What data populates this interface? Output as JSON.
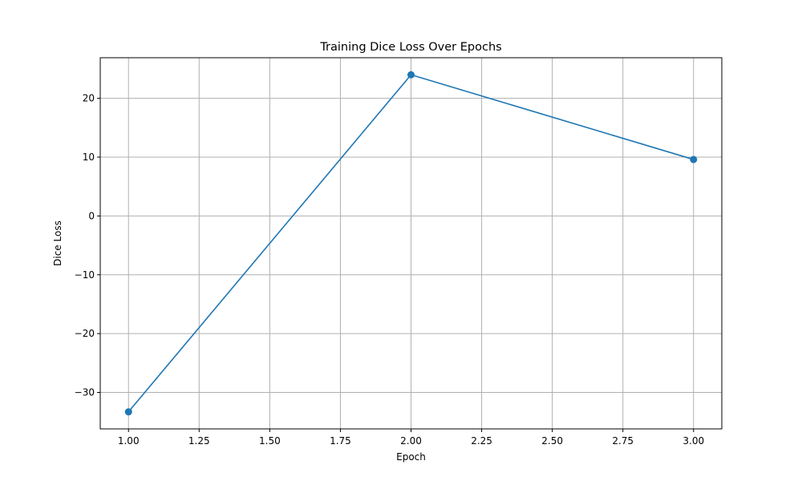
{
  "chart_data": {
    "type": "line",
    "title": "Training Dice Loss Over Epochs",
    "xlabel": "Epoch",
    "ylabel": "Dice Loss",
    "x": [
      1.0,
      2.0,
      3.0
    ],
    "series": [
      {
        "values": [
          -33.3,
          24.0,
          9.6
        ],
        "color": "#1f77b4",
        "marker": "circle"
      }
    ],
    "xlim": [
      0.9,
      3.1
    ],
    "ylim": [
      -36.2,
      26.9
    ],
    "xticks": [
      1.0,
      1.25,
      1.5,
      1.75,
      2.0,
      2.25,
      2.5,
      2.75,
      3.0
    ],
    "xtick_labels": [
      "1.00",
      "1.25",
      "1.50",
      "1.75",
      "2.00",
      "2.25",
      "2.50",
      "2.75",
      "3.00"
    ],
    "yticks": [
      -30,
      -20,
      -10,
      0,
      10,
      20
    ],
    "ytick_labels": [
      "−30",
      "−20",
      "−10",
      "0",
      "10",
      "20"
    ],
    "grid": true,
    "grid_color": "#b0b0b0"
  }
}
